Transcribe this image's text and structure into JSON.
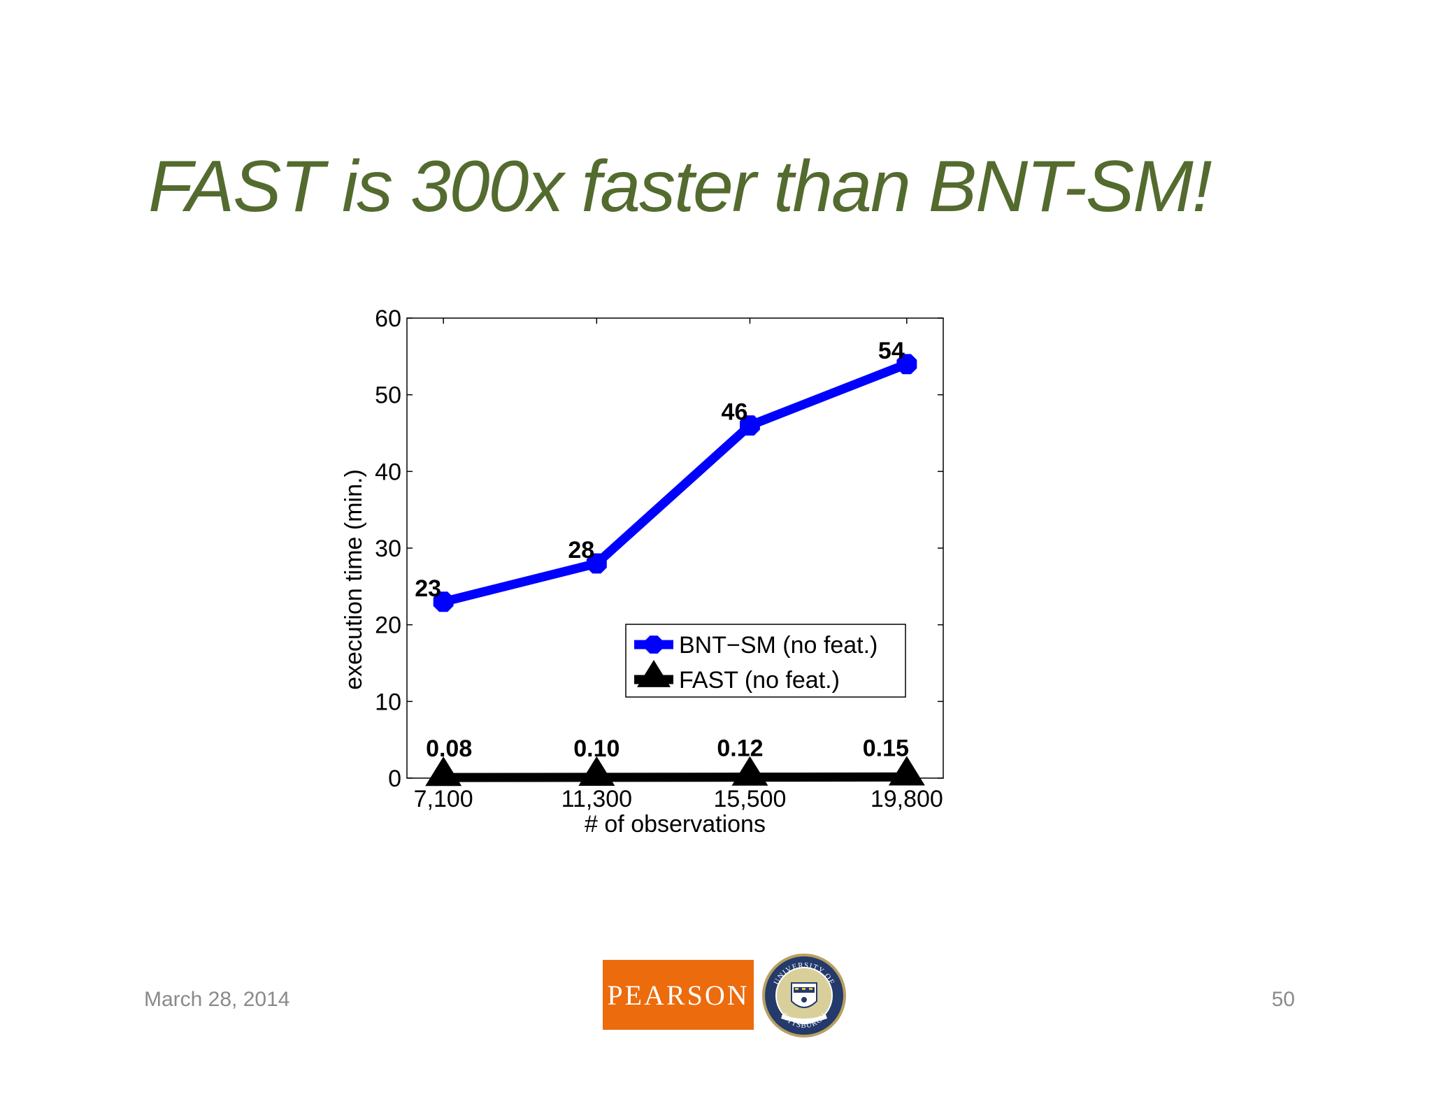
{
  "slide": {
    "title": "FAST is 300x faster than BNT-SM!",
    "date": "March 28, 2014",
    "page_number": "50",
    "logo_text": "PEARSON",
    "seal_text_top": "UNIVERSITY OF",
    "seal_text_bottom": "PITTSBURGH"
  },
  "colors": {
    "title": "#536b2e",
    "series_bnt": "#0000ff",
    "series_fast": "#000000",
    "pearson": "#ec6b0d"
  },
  "chart_data": {
    "type": "line",
    "title": "",
    "xlabel": "# of observations",
    "ylabel": "execution time (min.)",
    "categories": [
      "7,100",
      "11,300",
      "15,500",
      "19,800"
    ],
    "x": [
      7100,
      11300,
      15500,
      19800
    ],
    "xlim": [
      6100,
      20800
    ],
    "ylim": [
      0,
      60
    ],
    "yticks": [
      0,
      10,
      20,
      30,
      40,
      50,
      60
    ],
    "grid": false,
    "legend_position": "lower-right",
    "series": [
      {
        "name": "BNT−SM (no feat.)",
        "values": [
          23,
          28,
          46,
          54
        ],
        "labels": [
          "23",
          "28",
          "46",
          "54"
        ],
        "marker": "hexagon",
        "color": "#0000ff"
      },
      {
        "name": "FAST (no feat.)",
        "values": [
          0.08,
          0.1,
          0.12,
          0.15
        ],
        "labels": [
          "0.08",
          "0.10",
          "0.12",
          "0.15"
        ],
        "marker": "triangle",
        "color": "#000000"
      }
    ]
  }
}
